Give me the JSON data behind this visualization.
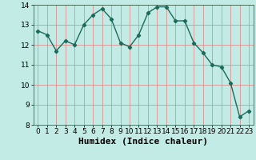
{
  "x": [
    0,
    1,
    2,
    3,
    4,
    5,
    6,
    7,
    8,
    9,
    10,
    11,
    12,
    13,
    14,
    15,
    16,
    17,
    18,
    19,
    20,
    21,
    22,
    23
  ],
  "y": [
    12.7,
    12.5,
    11.7,
    12.2,
    12.0,
    13.0,
    13.5,
    13.8,
    13.3,
    12.1,
    11.9,
    12.5,
    13.6,
    13.9,
    13.9,
    13.2,
    13.2,
    12.1,
    11.6,
    11.0,
    10.9,
    10.1,
    8.4,
    8.7
  ],
  "xlabel": "Humidex (Indice chaleur)",
  "xlim": [
    -0.5,
    23.5
  ],
  "ylim": [
    8,
    14
  ],
  "yticks": [
    8,
    9,
    10,
    11,
    12,
    13,
    14
  ],
  "xticks": [
    0,
    1,
    2,
    3,
    4,
    5,
    6,
    7,
    8,
    9,
    10,
    11,
    12,
    13,
    14,
    15,
    16,
    17,
    18,
    19,
    20,
    21,
    22,
    23
  ],
  "line_color": "#1a6b5a",
  "bg_color": "#c2ebe6",
  "grid_color": "#e08080",
  "marker": "D",
  "marker_size": 2.2,
  "line_width": 1.0,
  "xlabel_fontsize": 8,
  "tick_fontsize": 6.5
}
